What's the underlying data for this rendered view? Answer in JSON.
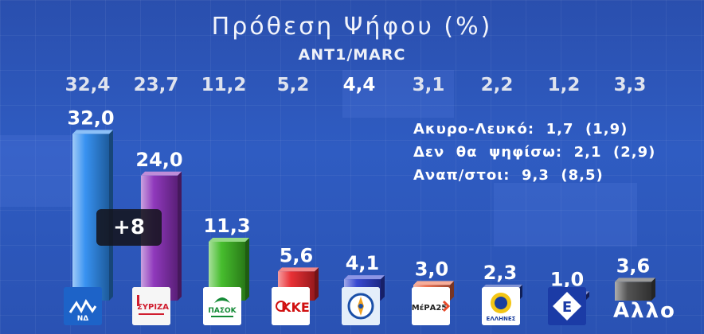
{
  "chart_data": {
    "type": "bar",
    "title": "Πρόθεση Ψήφου (%)",
    "subtitle": "ANT1/MARC",
    "categories": [
      "ΝΔ",
      "ΣΥΡΙΖΑ",
      "ΠΑΣΟΚ",
      "ΚΚΕ",
      "Ελληνική Λύση",
      "ΜέΡΑ25",
      "Έλληνες",
      "Ελεύθεροι",
      "Άλλο"
    ],
    "series": [
      {
        "values": [
          32.0,
          24.0,
          11.3,
          5.6,
          4.1,
          3.0,
          2.3,
          1.0,
          3.6
        ],
        "labels": [
          "32,0",
          "24,0",
          "11,3",
          "5,6",
          "4,1",
          "3,0",
          "2,3",
          "1,0",
          "3,6"
        ]
      }
    ],
    "previous_labels": [
      "32,4",
      "23,7",
      "11,2",
      "5,2",
      "4,4",
      "3,1",
      "2,2",
      "1,2",
      "3,3"
    ],
    "colors": [
      "#2d8cf0",
      "#8a2fb8",
      "#3dba23",
      "#e8262b",
      "#2d3fcf",
      "#f06a45",
      "#1f3fb0",
      "#2537a8",
      "#4a4a4a"
    ],
    "ylim": [
      0,
      35
    ],
    "difference_badge": "+8",
    "notes": [
      "Ακυρο-Λευκό:  1,7  (1,9)",
      "Δεν  θα  ψηφίσω:  2,1  (2,9)",
      "Αναπ/στοι:  9,3  (8,5)"
    ],
    "other_label": "Αλλο"
  },
  "logos": {
    "nd": {
      "icon": "nd-logo-icon",
      "text": "ΝΔ"
    },
    "syriza": {
      "icon": "syriza-logo-icon",
      "text": "ΣΥΡΙΖΑ"
    },
    "pasok": {
      "icon": "pasok-logo-icon",
      "text": "ΠΑΣΟΚ"
    },
    "kke": {
      "icon": "kke-logo-icon",
      "text": "ΚΚΕ"
    },
    "elliniki_lysi": {
      "icon": "compass-logo-icon"
    },
    "mera25": {
      "icon": "mera25-logo-icon",
      "text": "ΜέΡΑ25"
    },
    "ellines": {
      "icon": "ellines-logo-icon",
      "text": "ΕΛΛΗΝΕΣ"
    },
    "eleftheroi": {
      "icon": "eleftheroi-logo-icon",
      "text": "Ε"
    }
  }
}
